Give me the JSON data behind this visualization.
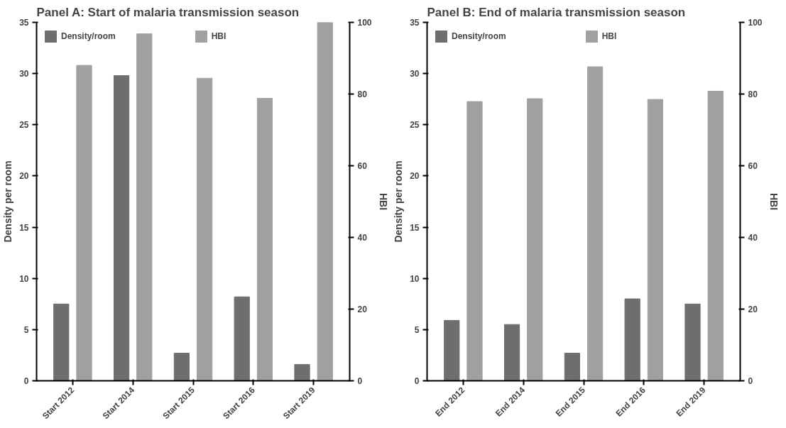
{
  "chart_data": [
    {
      "type": "bar",
      "title": "Panel A: Start of malaria transmission season",
      "ylabel": "Density per room",
      "y2label": "HBI",
      "categories": [
        "Start 2012",
        "Start 2014",
        "Start 2015",
        "Start 2016",
        "Start 2019"
      ],
      "series": [
        {
          "name": "Density/room",
          "color": "#6e6e6e",
          "values": [
            7.5,
            29.8,
            2.7,
            8.2,
            1.6
          ]
        },
        {
          "name": "HBI",
          "color": "#a0a0a0",
          "axis": "y2",
          "values": [
            88,
            96.8,
            84.4,
            78.8,
            100
          ]
        }
      ],
      "ylim": [
        0,
        35
      ],
      "yticks": [
        0,
        5,
        10,
        15,
        20,
        25,
        30,
        35
      ],
      "y2lim": [
        0,
        100
      ],
      "y2ticks": [
        0,
        20,
        40,
        60,
        80,
        100
      ],
      "legend": "top",
      "grid": false
    },
    {
      "type": "bar",
      "title": "Panel B: End of malaria transmission season",
      "ylabel": "Density per room",
      "y2label": "HBI",
      "categories": [
        "End 2012",
        "End 2014",
        "End 2015",
        "End 2016",
        "End 2019"
      ],
      "series": [
        {
          "name": "Density/room",
          "color": "#6e6e6e",
          "values": [
            5.9,
            5.5,
            2.7,
            8.0,
            7.5
          ]
        },
        {
          "name": "HBI",
          "color": "#a0a0a0",
          "axis": "y2",
          "values": [
            77.9,
            78.7,
            87.6,
            78.5,
            80.8
          ]
        }
      ],
      "ylim": [
        0,
        35
      ],
      "yticks": [
        0,
        5,
        10,
        15,
        20,
        25,
        30,
        35
      ],
      "y2lim": [
        0,
        100
      ],
      "y2ticks": [
        0,
        20,
        40,
        60,
        80,
        100
      ],
      "legend": "top",
      "grid": false
    }
  ]
}
